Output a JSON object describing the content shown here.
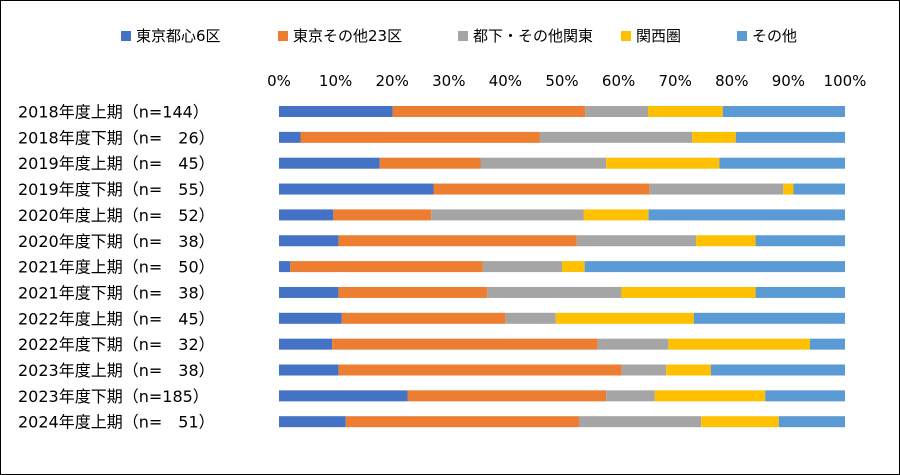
{
  "chart_data": {
    "type": "bar",
    "orientation": "horizontal",
    "stacked": "percent",
    "title": "",
    "xlabel": "",
    "ylabel": "",
    "xlim": [
      0,
      100
    ],
    "x_ticks": [
      "0%",
      "10%",
      "20%",
      "30%",
      "40%",
      "50%",
      "60%",
      "70%",
      "80%",
      "90%",
      "100%"
    ],
    "grid": false,
    "legend_position": "top",
    "categories": [
      "2018年度上期（n=144）",
      "2018年度下期（n=　26）",
      "2019年度上期（n=　45）",
      "2019年度下期（n=　55）",
      "2020年度上期（n=　52）",
      "2020年度下期（n=　38）",
      "2021年度上期（n=　50）",
      "2021年度下期（n=　38）",
      "2022年度上期（n=　45）",
      "2022年度下期（n=　32）",
      "2023年度上期（n=　38）",
      "2023年度下期（n=185）",
      "2024年度上期（n=　51）"
    ],
    "series": [
      {
        "name": "東京都心6区",
        "color": "#4472C4",
        "values": [
          20.1,
          3.8,
          17.8,
          27.3,
          9.6,
          10.5,
          2.0,
          10.5,
          11.1,
          9.4,
          10.5,
          22.7,
          11.8
        ]
      },
      {
        "name": "東京その他23区",
        "color": "#ED7D31",
        "values": [
          34.0,
          42.3,
          17.8,
          38.2,
          17.3,
          42.1,
          34.0,
          26.3,
          28.9,
          46.9,
          50.0,
          35.1,
          41.2
        ]
      },
      {
        "name": "都下・その他関東",
        "color": "#A5A5A5",
        "values": [
          11.1,
          26.9,
          22.2,
          23.6,
          26.9,
          21.1,
          14.0,
          23.7,
          8.9,
          12.5,
          7.9,
          8.6,
          21.6
        ]
      },
      {
        "name": "関西圏",
        "color": "#FFC000",
        "values": [
          13.2,
          7.7,
          20.0,
          1.8,
          11.5,
          10.5,
          4.0,
          23.7,
          24.4,
          25.0,
          7.9,
          19.5,
          13.7
        ]
      },
      {
        "name": "その他",
        "color": "#5B9BD5",
        "values": [
          21.6,
          19.3,
          22.2,
          9.1,
          34.7,
          15.8,
          46.0,
          15.8,
          26.7,
          6.2,
          23.7,
          14.1,
          11.7
        ]
      }
    ]
  }
}
